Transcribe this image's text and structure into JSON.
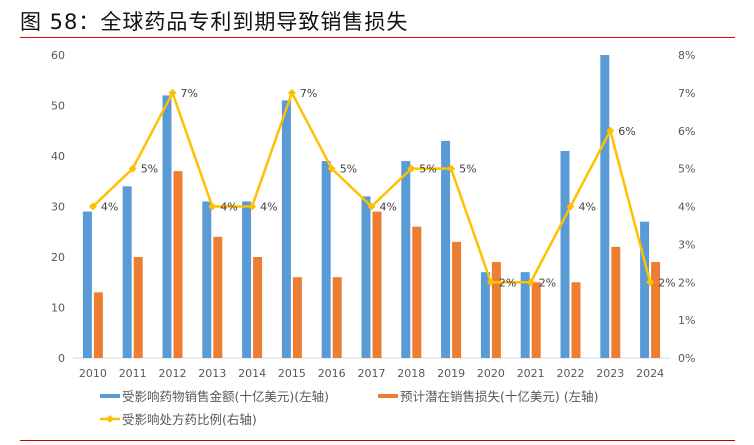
{
  "title": "图 58：全球药品专利到期导致销售损失",
  "chart_data": {
    "type": "bar+line",
    "title": "图 58：全球药品专利到期导致销售损失",
    "categories": [
      "2010",
      "2011",
      "2012",
      "2013",
      "2014",
      "2015",
      "2016",
      "2017",
      "2018",
      "2019",
      "2020",
      "2021",
      "2022",
      "2023",
      "2024"
    ],
    "series": [
      {
        "name": "受影响药物销售金额(十亿美元)(左轴)",
        "type": "bar",
        "axis": "left",
        "color": "#5B9BD5",
        "values": [
          29,
          34,
          52,
          31,
          31,
          51,
          39,
          32,
          39,
          43,
          17,
          17,
          41,
          60,
          27
        ]
      },
      {
        "name": "预计潜在销售损失(十亿美元) (左轴)",
        "type": "bar",
        "axis": "left",
        "color": "#ED7D31",
        "values": [
          13,
          20,
          37,
          24,
          20,
          16,
          16,
          29,
          26,
          23,
          19,
          15,
          15,
          22,
          19
        ]
      },
      {
        "name": "受影响处方药比例(右轴)",
        "type": "line",
        "axis": "right",
        "color": "#FFC000",
        "values": [
          4,
          5,
          7,
          4,
          4,
          7,
          5,
          4,
          5,
          5,
          2,
          2,
          4,
          6,
          2
        ],
        "labels": [
          "4%",
          "5%",
          "7%",
          "4%",
          "4%",
          "7%",
          "5%",
          "4%",
          "5%",
          "5%",
          "2%",
          "2%",
          "4%",
          "6%",
          "2%"
        ]
      }
    ],
    "left_axis": {
      "ylim": [
        0,
        60
      ],
      "ticks": [
        "0",
        "10",
        "20",
        "30",
        "40",
        "50",
        "60"
      ]
    },
    "right_axis": {
      "ylim": [
        0,
        8
      ],
      "ticks": [
        "0%",
        "1%",
        "2%",
        "3%",
        "4%",
        "5%",
        "6%",
        "7%",
        "8%"
      ]
    },
    "legend_placement": "bottom",
    "grid": false
  }
}
